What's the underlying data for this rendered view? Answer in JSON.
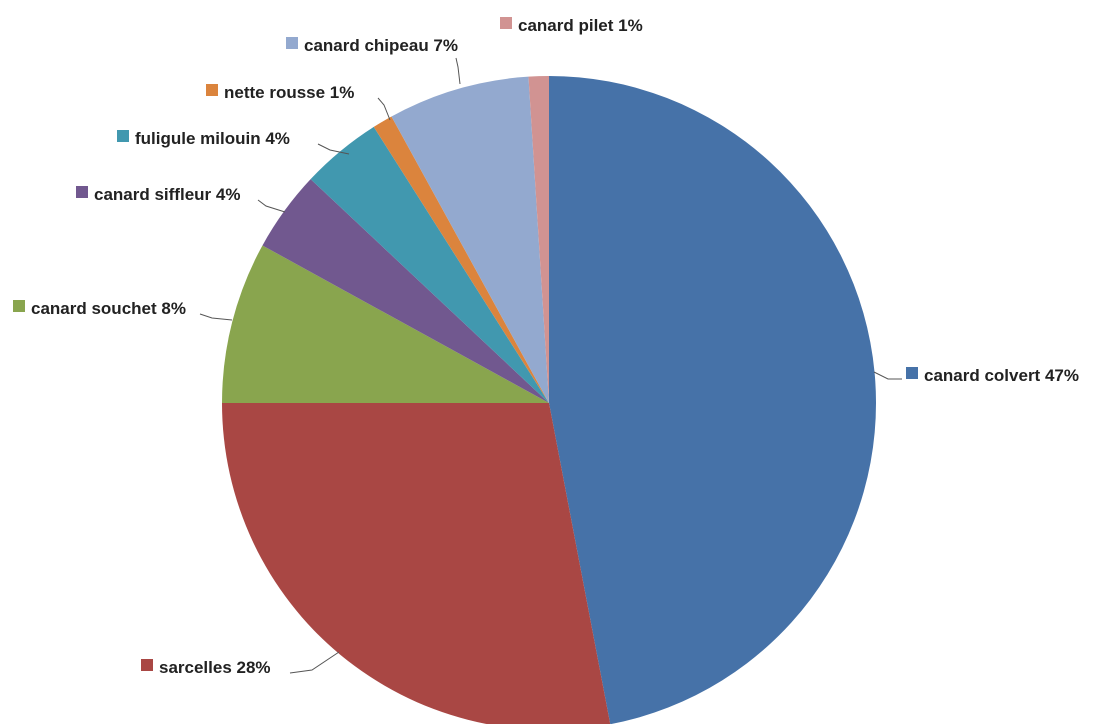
{
  "chart_data": {
    "type": "pie",
    "title": "",
    "start_angle_deg": 0,
    "direction": "clockwise",
    "slices": [
      {
        "label": "canard colvert 47%",
        "name": "canard colvert",
        "value": 47,
        "color": "#4672A8"
      },
      {
        "label": "sarcelles 28%",
        "name": "sarcelles",
        "value": 28,
        "color": "#A94744"
      },
      {
        "label": "canard souchet 8%",
        "name": "canard souchet",
        "value": 8,
        "color": "#89A54E"
      },
      {
        "label": "canard siffleur 4%",
        "name": "canard siffleur",
        "value": 4,
        "color": "#71588F"
      },
      {
        "label": "fuligule milouin 4%",
        "name": "fuligule milouin",
        "value": 4,
        "color": "#4198AF"
      },
      {
        "label": "nette rousse 1%",
        "name": "nette rousse",
        "value": 1,
        "color": "#DB843D"
      },
      {
        "label": "canard chipeau 7%",
        "name": "canard chipeau",
        "value": 7,
        "color": "#93A9CF"
      },
      {
        "label": "canard pilet 1%",
        "name": "canard pilet",
        "value": 1,
        "color": "#D19392"
      }
    ]
  }
}
